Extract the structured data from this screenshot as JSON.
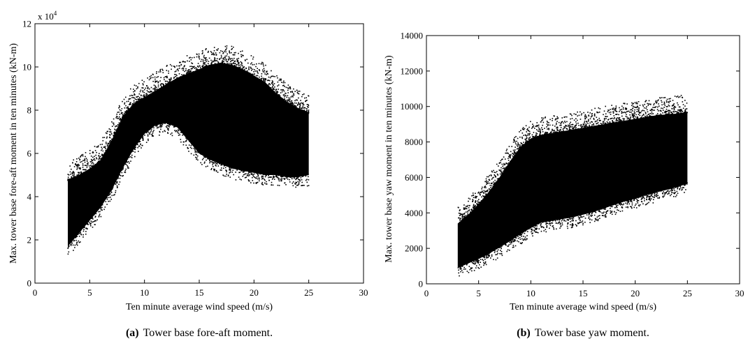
{
  "chart_data": [
    {
      "type": "scatter",
      "panel_tag": "(a)",
      "caption": "Tower base fore-aft moment.",
      "xlabel": "Ten minute average wind speed (m/s)",
      "ylabel": "Max. tower base fore-aft moment in ten minutes (kN-m)",
      "multiplier": "x 10",
      "multiplier_exponent": "4",
      "xlim": [
        0,
        30
      ],
      "ylim": [
        0,
        12
      ],
      "xticks": [
        "0",
        "5",
        "10",
        "15",
        "20",
        "25",
        "30"
      ],
      "yticks": [
        "0",
        "2",
        "4",
        "6",
        "8",
        "10",
        "12"
      ],
      "marker_color": "#000000",
      "envelope": {
        "x": [
          3,
          4,
          5,
          6,
          7,
          8,
          9,
          10,
          11,
          12,
          13,
          14,
          15,
          16,
          17,
          18,
          19,
          20,
          21,
          22,
          23,
          24,
          25
        ],
        "lower": [
          1.7,
          2.3,
          2.9,
          3.5,
          4.3,
          5.3,
          6.2,
          6.9,
          7.3,
          7.4,
          7.2,
          6.6,
          6.0,
          5.7,
          5.5,
          5.3,
          5.2,
          5.1,
          5.0,
          5.0,
          4.9,
          4.9,
          5.0
        ],
        "upper": [
          4.8,
          5.0,
          5.3,
          5.7,
          6.6,
          7.7,
          8.3,
          8.6,
          8.9,
          9.2,
          9.5,
          9.7,
          9.9,
          10.1,
          10.2,
          10.1,
          9.9,
          9.6,
          9.3,
          8.8,
          8.4,
          8.1,
          7.9
        ]
      }
    },
    {
      "type": "scatter",
      "panel_tag": "(b)",
      "caption": "Tower base yaw moment.",
      "xlabel": "Ten minute average wind speed (m/s)",
      "ylabel": "Max. tower base yaw moment in ten minutes (kN-m)",
      "xlim": [
        0,
        30
      ],
      "ylim": [
        0,
        14000
      ],
      "xticks": [
        "0",
        "5",
        "10",
        "15",
        "20",
        "25",
        "30"
      ],
      "yticks": [
        "0",
        "2000",
        "4000",
        "6000",
        "8000",
        "10000",
        "12000",
        "14000"
      ],
      "marker_color": "#000000",
      "envelope": {
        "x": [
          3,
          4,
          5,
          6,
          7,
          8,
          9,
          10,
          11,
          12,
          13,
          14,
          15,
          16,
          17,
          18,
          19,
          20,
          21,
          22,
          23,
          24,
          25
        ],
        "lower": [
          900,
          1150,
          1400,
          1700,
          2050,
          2400,
          2800,
          3150,
          3450,
          3550,
          3650,
          3750,
          3900,
          4050,
          4250,
          4450,
          4650,
          4800,
          5000,
          5150,
          5300,
          5450,
          5650
        ],
        "upper": [
          3400,
          3900,
          4500,
          5200,
          6000,
          6900,
          7700,
          8200,
          8400,
          8500,
          8600,
          8700,
          8800,
          8900,
          9000,
          9100,
          9200,
          9300,
          9400,
          9500,
          9550,
          9600,
          9700
        ]
      }
    }
  ]
}
